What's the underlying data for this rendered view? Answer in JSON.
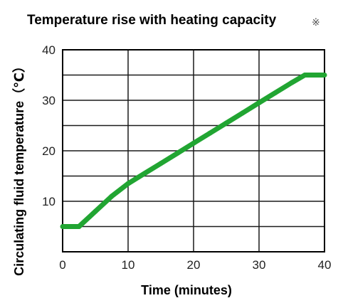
{
  "chart_data": {
    "type": "line",
    "title": "Temperature rise with heating capacity",
    "title_mark": "※",
    "xlabel": "Time (minutes)",
    "ylabel": "Circulating fluid temperature（℃）",
    "xlim": [
      0,
      40
    ],
    "ylim": [
      0,
      40
    ],
    "x_ticks": [
      0,
      10,
      20,
      30,
      40
    ],
    "y_ticks": [
      10,
      20,
      30,
      40
    ],
    "y_gridlines": [
      5,
      10,
      15,
      20,
      25,
      30,
      35
    ],
    "x_gridlines": [
      10,
      20,
      30
    ],
    "grid": true,
    "line_color": "#21a532",
    "series": [
      {
        "x": [
          0,
          2.5,
          5,
          7.5,
          10,
          12.5,
          15,
          17.5,
          20,
          22.5,
          25,
          27.5,
          30,
          32.5,
          35,
          37,
          40
        ],
        "values": [
          5,
          5,
          8,
          11,
          13.5,
          15.5,
          17.5,
          19.5,
          21.5,
          23.5,
          25.5,
          27.5,
          29.5,
          31.5,
          33.5,
          35,
          35
        ]
      }
    ]
  }
}
